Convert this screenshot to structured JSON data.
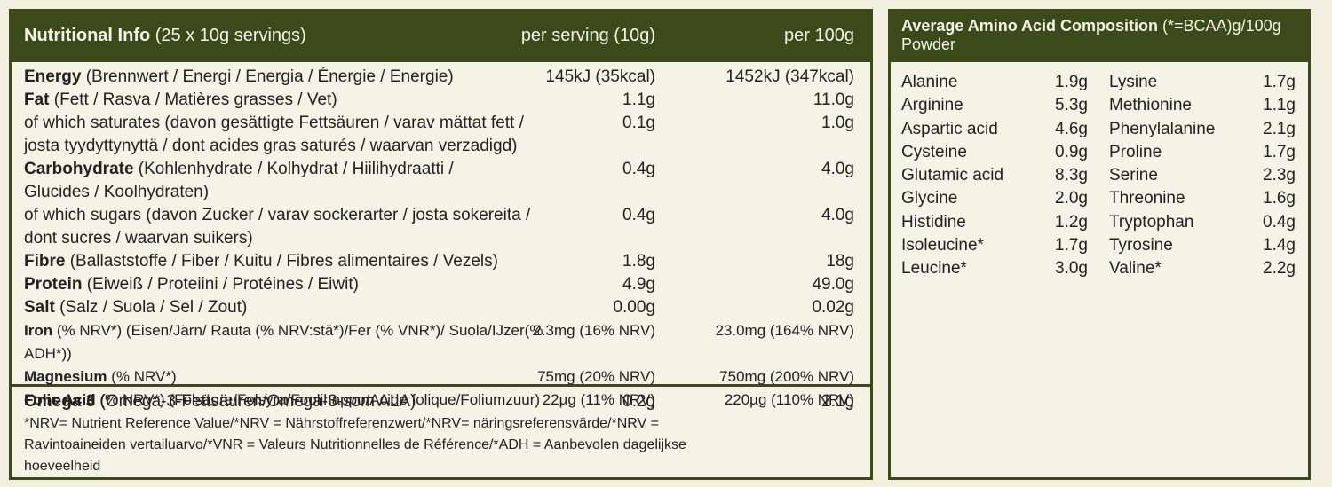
{
  "nutrition": {
    "header": {
      "title_bold": "Nutritional Info",
      "title_rest": " (25 x 10g servings)",
      "col1": "per serving (10g)",
      "col2": "per 100g"
    },
    "rows": [
      {
        "bold": "Energy",
        "rest": " (Brennwert / Energi / Energia / Énergie / Energie)",
        "v1": "145kJ (35kcal)",
        "v2": "1452kJ (347kcal)"
      },
      {
        "bold": "Fat",
        "rest": " (Fett / Rasva / Matières grasses / Vet)",
        "v1": "1.1g",
        "v2": "11.0g"
      },
      {
        "bold": "",
        "rest": "of which saturates  (davon gesättigte Fettsäuren / varav mättat fett /",
        "v1": "0.1g",
        "v2": "1.0g"
      },
      {
        "bold": "",
        "rest": "josta tyydyttynyttä / dont acides gras saturés / waarvan verzadigd)",
        "v1": "",
        "v2": ""
      },
      {
        "bold": "Carbohydrate",
        "rest": " (Kohlenhydrate / Kolhydrat / Hiilihydraatti /",
        "v1": "0.4g",
        "v2": "4.0g"
      },
      {
        "bold": "",
        "rest": "Glucides / Koolhydraten)",
        "v1": "",
        "v2": ""
      },
      {
        "bold": "",
        "rest": "of which sugars (davon Zucker / varav sockerarter / josta sokereita /",
        "v1": "0.4g",
        "v2": "4.0g"
      },
      {
        "bold": "",
        "rest": "dont sucres / waarvan suikers)",
        "v1": "",
        "v2": ""
      },
      {
        "bold": "Fibre",
        "rest": " (Ballaststoffe / Fiber / Kuitu / Fibres alimentaires / Vezels)",
        "v1": "1.8g",
        "v2": "18g"
      },
      {
        "bold": "Protein",
        "rest": " (Eiweiß / Proteiini / Protéines / Eiwit)",
        "v1": "4.9g",
        "v2": "49.0g"
      },
      {
        "bold": "Salt",
        "rest": " (Salz / Suola / Sel / Zout)",
        "v1": "0.00g",
        "v2": "0.02g"
      },
      {
        "bold": "Iron",
        "rest": " (% NRV*) (Eisen/Järn/ Rauta (% NRV:stä*)/Fer (% VNR*)/ Suola/IJzer(% ADH*))",
        "v1": "2.3mg (16% NRV)",
        "v2": "23.0mg (164% NRV)",
        "small": true
      },
      {
        "bold": "Magnesium",
        "rest": " (% NRV*)",
        "v1": "75mg (20% NRV)",
        "v2": "750mg (200% NRV)",
        "small": true
      },
      {
        "bold": "Folic Acid",
        "rest": " (% NRV*) (Folsäure/Folsyra/Foolihappo/Acide folique/Foliumzuur)",
        "v1": "22µg (11% NRV)",
        "v2": "220µg (110% NRV)",
        "small": true
      }
    ],
    "omega": {
      "bold": "Omega 3",
      "rest": " (Omega-3-Fettsäuren/Omega-3-som ALA)",
      "v1": "0.2g",
      "v2": "2.1g"
    },
    "note": "*NRV= Nutrient Reference Value/*NRV = Nährstoffreferenzwert/*NRV= näringsreferensvärde/*NRV = Ravintoaineiden vertailuarvo/*VNR = Valeurs Nutritionnelles de Référence/*ADH = Aanbevolen dagelijkse hoeveelheid"
  },
  "amino": {
    "header": {
      "title_bold": "Average Amino Acid Composition",
      "title_rest": " (*=BCAA)g/100g Powder"
    },
    "rows": [
      {
        "a": "Alanine",
        "av": "1.9g",
        "b": "Lysine",
        "bv": "1.7g"
      },
      {
        "a": "Arginine",
        "av": "5.3g",
        "b": "Methionine",
        "bv": "1.1g"
      },
      {
        "a": "Aspartic acid",
        "av": "4.6g",
        "b": "Phenylalanine",
        "bv": "2.1g"
      },
      {
        "a": "Cysteine",
        "av": "0.9g",
        "b": "Proline",
        "bv": "1.7g"
      },
      {
        "a": "Glutamic acid",
        "av": "8.3g",
        "b": "Serine",
        "bv": "2.3g"
      },
      {
        "a": "Glycine",
        "av": "2.0g",
        "b": "Threonine",
        "bv": "1.6g"
      },
      {
        "a": "Histidine",
        "av": "1.2g",
        "b": "Tryptophan",
        "bv": "0.4g"
      },
      {
        "a": "Isoleucine*",
        "av": "1.7g",
        "b": "Tyrosine",
        "bv": "1.4g"
      },
      {
        "a": "Leucine*",
        "av": "3.0g",
        "b": "Valine*",
        "bv": "2.2g"
      }
    ]
  }
}
